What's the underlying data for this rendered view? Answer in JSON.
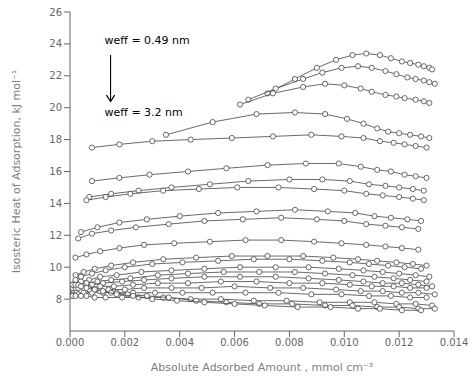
{
  "chart_data": {
    "type": "line",
    "title": "",
    "xlabel": "Absolute Adsorbed Amount , mmol cm⁻³",
    "ylabel": "Isosteric Heat of Adsorption, kJ mol⁻¹",
    "xlim": [
      0.0,
      0.014
    ],
    "ylim": [
      6,
      26
    ],
    "xticks": [
      {
        "value": 0.0,
        "label": "0.000"
      },
      0.002,
      0.004,
      0.006,
      0.008,
      {
        "value": 0.01,
        "label": "0.010"
      },
      0.012,
      0.014
    ],
    "yticks": [
      8,
      10,
      12,
      14,
      16,
      18,
      20,
      22,
      24,
      26
    ],
    "annotations": [
      "weff = 0.49 nm",
      "weff = 3.2 nm"
    ],
    "color": "#444444",
    "marker": "circle",
    "grid": false,
    "series": [
      {
        "x": [
          0.0072,
          0.0082,
          0.009,
          0.0097,
          0.0103,
          0.0108,
          0.0113,
          0.0117,
          0.0121,
          0.0124,
          0.0127,
          0.0129,
          0.0131,
          0.0132
        ],
        "values": [
          20.9,
          21.8,
          22.5,
          23.0,
          23.3,
          23.4,
          23.3,
          23.1,
          22.9,
          22.8,
          22.7,
          22.6,
          22.5,
          22.4
        ]
      },
      {
        "x": [
          0.0065,
          0.0075,
          0.0085,
          0.0092,
          0.0099,
          0.0105,
          0.011,
          0.0115,
          0.0119,
          0.0123,
          0.0126,
          0.0129,
          0.0131,
          0.0133
        ],
        "values": [
          20.5,
          21.2,
          21.8,
          22.2,
          22.5,
          22.6,
          22.5,
          22.3,
          22.1,
          21.9,
          21.8,
          21.7,
          21.6,
          21.5
        ]
      },
      {
        "x": [
          0.0062,
          0.0074,
          0.0085,
          0.0093,
          0.01,
          0.0106,
          0.011,
          0.0115,
          0.0119,
          0.0122,
          0.0126,
          0.0129,
          0.0131
        ],
        "values": [
          20.2,
          20.9,
          21.3,
          21.5,
          21.4,
          21.2,
          21.0,
          20.8,
          20.7,
          20.6,
          20.5,
          20.4,
          20.3
        ]
      },
      {
        "x": [
          0.0035,
          0.0052,
          0.0068,
          0.0082,
          0.0093,
          0.0101,
          0.0107,
          0.0112,
          0.0116,
          0.012,
          0.0124,
          0.0128,
          0.0131
        ],
        "values": [
          18.3,
          19.1,
          19.6,
          19.7,
          19.6,
          19.3,
          19.0,
          18.7,
          18.5,
          18.4,
          18.3,
          18.2,
          18.1
        ]
      },
      {
        "x": [
          0.0008,
          0.0018,
          0.003,
          0.0044,
          0.0059,
          0.0074,
          0.0088,
          0.0099,
          0.0107,
          0.0113,
          0.0118,
          0.0122,
          0.0126,
          0.013
        ],
        "values": [
          17.5,
          17.7,
          17.9,
          18.0,
          18.1,
          18.2,
          18.3,
          18.2,
          18.1,
          17.9,
          17.8,
          17.7,
          17.6,
          17.5
        ]
      },
      {
        "x": [
          0.0008,
          0.0018,
          0.0029,
          0.0043,
          0.0057,
          0.0072,
          0.0086,
          0.0098,
          0.0106,
          0.0112,
          0.0117,
          0.0122,
          0.0126,
          0.013
        ],
        "values": [
          15.4,
          15.6,
          15.8,
          16.0,
          16.2,
          16.4,
          16.5,
          16.5,
          16.3,
          16.1,
          16.0,
          15.8,
          15.7,
          15.6
        ]
      },
      {
        "x": [
          0.0007,
          0.0015,
          0.0025,
          0.0037,
          0.0051,
          0.0065,
          0.008,
          0.0092,
          0.0102,
          0.0109,
          0.0115,
          0.012,
          0.0125,
          0.0129
        ],
        "values": [
          14.4,
          14.6,
          14.8,
          15.0,
          15.2,
          15.4,
          15.5,
          15.5,
          15.4,
          15.2,
          15.1,
          15.0,
          14.9,
          14.8
        ]
      },
      {
        "x": [
          0.0006,
          0.0013,
          0.0022,
          0.0034,
          0.0047,
          0.0061,
          0.0076,
          0.0089,
          0.01,
          0.0108,
          0.0114,
          0.012,
          0.0125,
          0.0129
        ],
        "values": [
          14.2,
          14.4,
          14.6,
          14.8,
          14.9,
          15.0,
          15.0,
          14.9,
          14.8,
          14.6,
          14.5,
          14.4,
          14.3,
          14.2
        ]
      },
      {
        "x": [
          0.0004,
          0.001,
          0.0018,
          0.0028,
          0.004,
          0.0054,
          0.0068,
          0.0082,
          0.0094,
          0.0104,
          0.0111,
          0.0117,
          0.0123,
          0.0128
        ],
        "values": [
          12.2,
          12.5,
          12.8,
          13.0,
          13.2,
          13.4,
          13.5,
          13.6,
          13.5,
          13.4,
          13.2,
          13.1,
          13.0,
          12.9
        ]
      },
      {
        "x": [
          0.0003,
          0.0008,
          0.0015,
          0.0024,
          0.0036,
          0.0049,
          0.0063,
          0.0077,
          0.009,
          0.01,
          0.0108,
          0.0115,
          0.0121,
          0.0127
        ],
        "values": [
          11.8,
          12.1,
          12.3,
          12.5,
          12.7,
          12.9,
          13.0,
          13.1,
          13.0,
          12.9,
          12.7,
          12.6,
          12.5,
          12.4
        ]
      },
      {
        "x": [
          0.0002,
          0.0006,
          0.0011,
          0.0018,
          0.0027,
          0.0038,
          0.0051,
          0.0064,
          0.0077,
          0.0089,
          0.0099,
          0.0108,
          0.0115,
          0.0121,
          0.0127
        ],
        "values": [
          10.6,
          10.8,
          11.0,
          11.2,
          11.4,
          11.5,
          11.6,
          11.7,
          11.7,
          11.6,
          11.5,
          11.4,
          11.3,
          11.2,
          11.1
        ]
      },
      {
        "x": [
          0.0002,
          0.0005,
          0.0009,
          0.0015,
          0.0023,
          0.0034,
          0.0046,
          0.0059,
          0.0072,
          0.0085,
          0.0096,
          0.0105,
          0.0112,
          0.0119,
          0.0125,
          0.013
        ],
        "values": [
          9.5,
          9.7,
          9.9,
          10.1,
          10.3,
          10.5,
          10.6,
          10.7,
          10.7,
          10.7,
          10.6,
          10.5,
          10.4,
          10.3,
          10.2,
          10.1
        ]
      },
      {
        "x": [
          0.0002,
          0.0004,
          0.0008,
          0.0013,
          0.002,
          0.003,
          0.0041,
          0.0054,
          0.0067,
          0.008,
          0.0092,
          0.0102,
          0.0109,
          0.0116,
          0.0122,
          0.0128
        ],
        "values": [
          9.2,
          9.4,
          9.6,
          9.8,
          10.0,
          10.2,
          10.3,
          10.4,
          10.5,
          10.5,
          10.4,
          10.3,
          10.2,
          10.1,
          10.0,
          9.9
        ]
      },
      {
        "x": [
          0.0001,
          0.0004,
          0.0007,
          0.0011,
          0.0017,
          0.0026,
          0.0037,
          0.0049,
          0.0062,
          0.0075,
          0.0087,
          0.0098,
          0.0107,
          0.0114,
          0.012,
          0.0126,
          0.0131
        ],
        "values": [
          8.9,
          9.1,
          9.2,
          9.4,
          9.5,
          9.7,
          9.8,
          9.9,
          10.0,
          10.0,
          10.0,
          9.9,
          9.8,
          9.7,
          9.6,
          9.5,
          9.4
        ]
      },
      {
        "x": [
          0.0001,
          0.0003,
          0.0006,
          0.001,
          0.0015,
          0.0022,
          0.0032,
          0.0043,
          0.0056,
          0.0069,
          0.0082,
          0.0093,
          0.0103,
          0.0111,
          0.0118,
          0.0124,
          0.013
        ],
        "values": [
          8.7,
          8.8,
          9.0,
          9.1,
          9.2,
          9.3,
          9.5,
          9.6,
          9.7,
          9.7,
          9.7,
          9.6,
          9.5,
          9.4,
          9.3,
          9.2,
          9.1
        ]
      },
      {
        "x": [
          0.0001,
          0.0002,
          0.0005,
          0.0008,
          0.0012,
          0.0019,
          0.0027,
          0.0037,
          0.0049,
          0.0062,
          0.0075,
          0.0087,
          0.0098,
          0.0107,
          0.0114,
          0.0121,
          0.0127,
          0.0132
        ],
        "values": [
          8.6,
          8.7,
          8.8,
          8.9,
          9.0,
          9.1,
          9.2,
          9.3,
          9.4,
          9.4,
          9.4,
          9.3,
          9.2,
          9.1,
          9.0,
          9.0,
          8.9,
          8.8
        ]
      },
      {
        "x": [
          0.0001,
          0.0002,
          0.0004,
          0.0007,
          0.0011,
          0.0016,
          0.0023,
          0.0032,
          0.0043,
          0.0055,
          0.0068,
          0.008,
          0.0092,
          0.0102,
          0.011,
          0.0118,
          0.0124,
          0.013
        ],
        "values": [
          8.5,
          8.6,
          8.6,
          8.7,
          8.8,
          8.8,
          8.9,
          9.0,
          9.0,
          9.1,
          9.1,
          9.0,
          9.0,
          8.9,
          8.8,
          8.8,
          8.7,
          8.7
        ]
      },
      {
        "x": [
          0.0001,
          0.0002,
          0.0004,
          0.0006,
          0.0009,
          0.0014,
          0.002,
          0.0027,
          0.0037,
          0.0048,
          0.006,
          0.0073,
          0.0085,
          0.0097,
          0.0106,
          0.0114,
          0.0121,
          0.0127,
          0.0133
        ],
        "values": [
          8.4,
          8.5,
          8.5,
          8.5,
          8.6,
          8.6,
          8.6,
          8.7,
          8.7,
          8.7,
          8.8,
          8.7,
          8.7,
          8.6,
          8.5,
          8.5,
          8.4,
          8.4,
          8.3
        ]
      },
      {
        "x": [
          0.0001,
          0.0001,
          0.0003,
          0.0005,
          0.0008,
          0.0012,
          0.0017,
          0.0023,
          0.0031,
          0.0041,
          0.0052,
          0.0064,
          0.0076,
          0.0088,
          0.0099,
          0.0109,
          0.0117,
          0.0124,
          0.013
        ],
        "values": [
          8.3,
          8.3,
          8.3,
          8.4,
          8.4,
          8.4,
          8.4,
          8.4,
          8.4,
          8.4,
          8.4,
          8.4,
          8.4,
          8.3,
          8.3,
          8.2,
          8.2,
          8.1,
          8.1
        ]
      },
      {
        "x": [
          0.0001,
          0.0001,
          0.0002,
          0.0004,
          0.0006,
          0.0009,
          0.0013,
          0.0019,
          0.0025,
          0.0034,
          0.0044,
          0.0055,
          0.0067,
          0.0079,
          0.0091,
          0.0102,
          0.0111,
          0.0119,
          0.0126,
          0.0132
        ],
        "values": [
          8.2,
          8.2,
          8.2,
          8.2,
          8.2,
          8.1,
          8.1,
          8.1,
          8.1,
          8.1,
          8.0,
          8.0,
          7.9,
          7.9,
          7.8,
          7.8,
          7.8,
          7.7,
          7.7,
          7.6
        ]
      },
      {
        "x": [
          0.0001,
          0.0001,
          0.0002,
          0.0003,
          0.0005,
          0.0007,
          0.0011,
          0.0015,
          0.0021,
          0.0028,
          0.0036,
          0.0046,
          0.0057,
          0.0069,
          0.0081,
          0.0093,
          0.0103,
          0.0112,
          0.012,
          0.0127,
          0.0133
        ],
        "values": [
          8.6,
          8.7,
          8.7,
          8.7,
          8.7,
          8.6,
          8.5,
          8.4,
          8.3,
          8.2,
          8.1,
          7.9,
          7.8,
          7.7,
          7.7,
          7.6,
          7.6,
          7.5,
          7.5,
          7.4,
          7.4
        ]
      },
      {
        "x": [
          0.0001,
          0.0001,
          0.0002,
          0.0003,
          0.0004,
          0.0006,
          0.0009,
          0.0012,
          0.0017,
          0.0023,
          0.003,
          0.0039,
          0.0049,
          0.006,
          0.0071,
          0.0083,
          0.0095,
          0.0105,
          0.0113,
          0.0121,
          0.0128
        ],
        "values": [
          8.9,
          8.9,
          8.9,
          8.9,
          8.8,
          8.7,
          8.6,
          8.5,
          8.3,
          8.2,
          8.0,
          7.9,
          7.8,
          7.7,
          7.6,
          7.5,
          7.5,
          7.4,
          7.4,
          7.3,
          7.3
        ]
      }
    ]
  }
}
